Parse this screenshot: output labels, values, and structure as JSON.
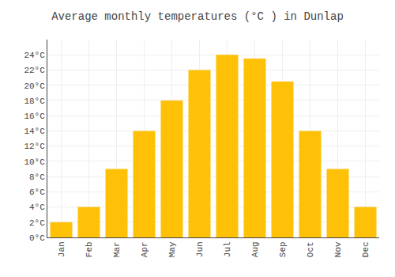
{
  "chart_data": {
    "type": "bar",
    "title": "Average monthly temperatures (°C ) in Dunlap",
    "categories": [
      "Jan",
      "Feb",
      "Mar",
      "Apr",
      "May",
      "Jun",
      "Jul",
      "Aug",
      "Sep",
      "Oct",
      "Nov",
      "Dec"
    ],
    "values": [
      2,
      4,
      9,
      14,
      18,
      22,
      24,
      23.5,
      20.5,
      14,
      9,
      4
    ],
    "color": "#FFC107",
    "ylim": [
      0,
      26
    ],
    "yticks": [
      {
        "value": 0,
        "label": "0°C"
      },
      {
        "value": 2,
        "label": "2°C"
      },
      {
        "value": 4,
        "label": "4°C"
      },
      {
        "value": 6,
        "label": "6°C"
      },
      {
        "value": 8,
        "label": "8°C"
      },
      {
        "value": 10,
        "label": "10°C"
      },
      {
        "value": 12,
        "label": "12°C"
      },
      {
        "value": 14,
        "label": "14°C"
      },
      {
        "value": 16,
        "label": "16°C"
      },
      {
        "value": 18,
        "label": "18°C"
      },
      {
        "value": 20,
        "label": "20°C"
      },
      {
        "value": 22,
        "label": "22°C"
      },
      {
        "value": 24,
        "label": "24°C"
      }
    ],
    "grid": true
  }
}
